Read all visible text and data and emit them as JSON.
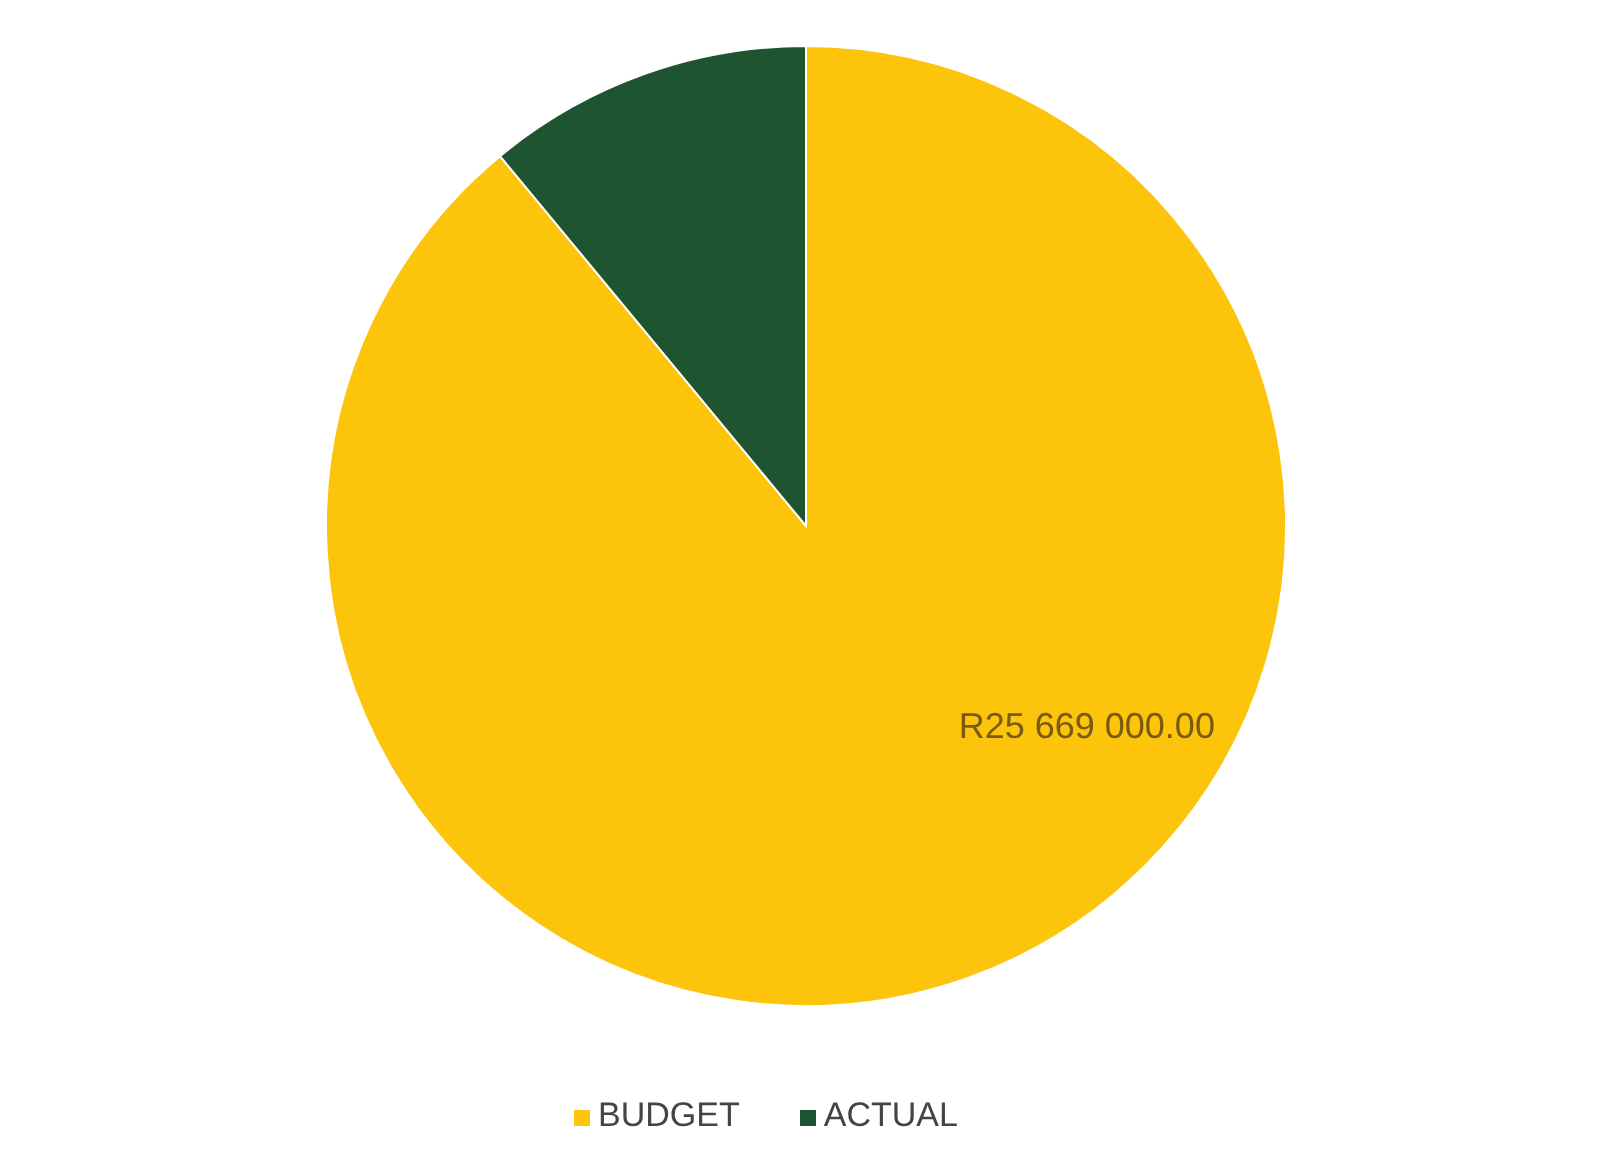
{
  "chart_data": {
    "type": "pie",
    "categories": [
      "BUDGET",
      "ACTUAL"
    ],
    "values": [
      89,
      11
    ],
    "colors": [
      "#fcc40a",
      "#1e5530"
    ],
    "value_labels": [
      "R25 669 000.00",
      null
    ],
    "legend": "bottom"
  }
}
